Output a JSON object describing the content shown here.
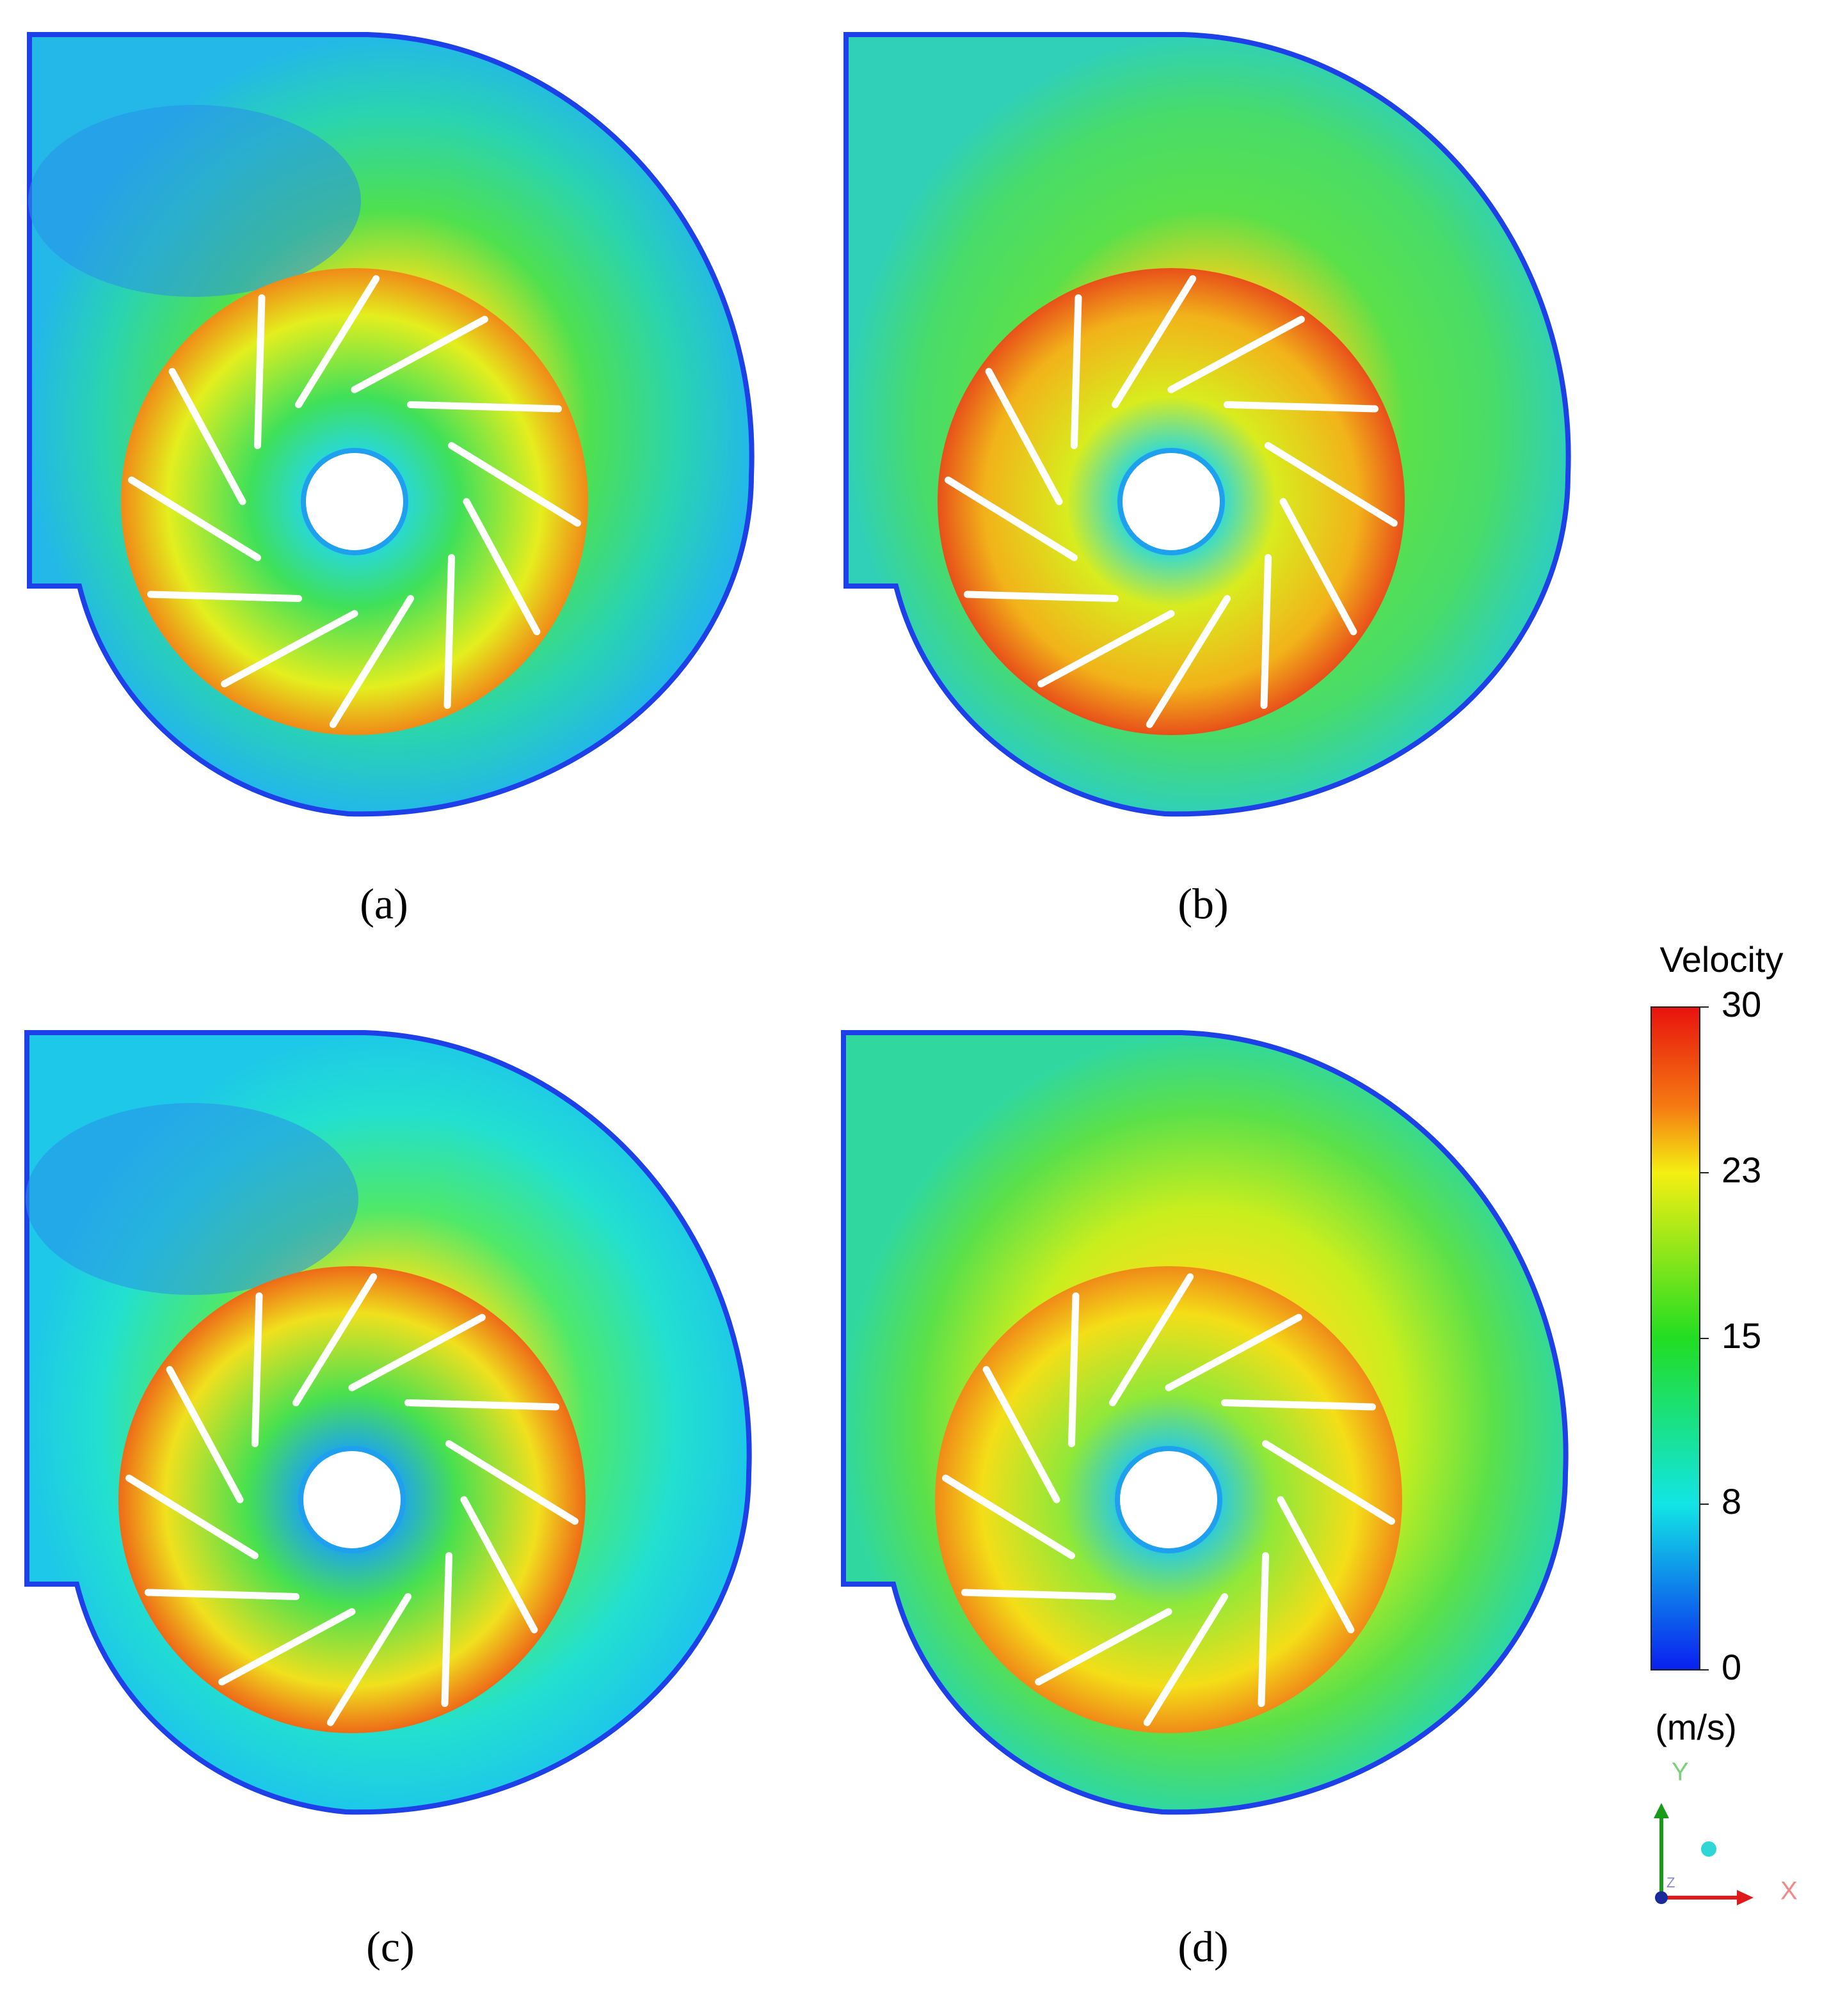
{
  "panels": [
    {
      "label": "(a)"
    },
    {
      "label": "(b)"
    },
    {
      "label": "(c)"
    },
    {
      "label": "(d)"
    }
  ],
  "colorbar": {
    "title": "Velocity",
    "unit": "(m/s)",
    "range": [
      0,
      30
    ],
    "ticks": [
      30,
      {
        "value": 22.5,
        "label": "23"
      },
      15,
      {
        "value": 7.5,
        "label": "8"
      },
      0
    ]
  },
  "axes": {
    "y": "Y",
    "x": "X",
    "z": "Z"
  }
}
